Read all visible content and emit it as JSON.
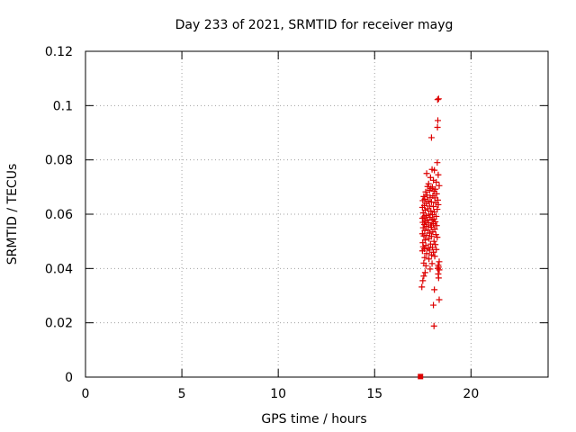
{
  "chart_data": {
    "type": "scatter",
    "title": "Day 233 of 2021, SRMTID for receiver mayg",
    "xlabel": "GPS time / hours",
    "ylabel": "SRMTID / TECUs",
    "xlim": [
      0,
      24
    ],
    "ylim": [
      0,
      0.12
    ],
    "xticks": [
      0,
      5,
      10,
      15,
      20
    ],
    "yticks": [
      0,
      0.02,
      0.04,
      0.06,
      0.08,
      0.1,
      0.12
    ],
    "ytick_labels": [
      "0",
      "0.02",
      "0.04",
      "0.06",
      "0.08",
      "0.1",
      "0.12"
    ],
    "grid": true,
    "marker_color": "#dd0000",
    "series": [
      {
        "marker": "plus",
        "points": [
          [
            18.32,
            0.1025
          ],
          [
            18.27,
            0.1022
          ],
          [
            18.28,
            0.0945
          ],
          [
            18.26,
            0.092
          ],
          [
            17.95,
            0.0882
          ],
          [
            18.25,
            0.079
          ],
          [
            17.98,
            0.0765
          ],
          [
            18.1,
            0.0762
          ],
          [
            17.7,
            0.075
          ],
          [
            18.3,
            0.0745
          ],
          [
            17.9,
            0.0735
          ],
          [
            18.05,
            0.0725
          ],
          [
            18.2,
            0.0718
          ],
          [
            17.8,
            0.0712
          ],
          [
            18.35,
            0.0705
          ],
          [
            17.75,
            0.0702
          ],
          [
            18.0,
            0.07
          ],
          [
            17.92,
            0.0695
          ],
          [
            18.15,
            0.0692
          ],
          [
            17.85,
            0.0688
          ],
          [
            18.08,
            0.0685
          ],
          [
            17.65,
            0.0682
          ],
          [
            18.22,
            0.0675
          ],
          [
            17.72,
            0.067
          ],
          [
            18.02,
            0.0668
          ],
          [
            17.55,
            0.0665
          ],
          [
            17.88,
            0.0662
          ],
          [
            18.12,
            0.066
          ],
          [
            17.6,
            0.0655
          ],
          [
            18.28,
            0.0652
          ],
          [
            17.5,
            0.065
          ],
          [
            17.78,
            0.0648
          ],
          [
            17.95,
            0.0645
          ],
          [
            18.18,
            0.0642
          ],
          [
            17.68,
            0.064
          ],
          [
            18.3,
            0.0635
          ],
          [
            17.58,
            0.0632
          ],
          [
            17.85,
            0.063
          ],
          [
            18.05,
            0.0628
          ],
          [
            17.48,
            0.0625
          ],
          [
            17.75,
            0.062
          ],
          [
            18.25,
            0.0618
          ],
          [
            17.62,
            0.0615
          ],
          [
            17.92,
            0.0612
          ],
          [
            18.1,
            0.0608
          ],
          [
            17.52,
            0.0605
          ],
          [
            17.82,
            0.06
          ],
          [
            18.0,
            0.0598
          ],
          [
            17.66,
            0.0595
          ],
          [
            18.2,
            0.0592
          ],
          [
            17.56,
            0.059
          ],
          [
            17.88,
            0.0588
          ],
          [
            17.48,
            0.0585
          ],
          [
            18.08,
            0.0582
          ],
          [
            17.72,
            0.058
          ],
          [
            17.98,
            0.0578
          ],
          [
            17.62,
            0.0575
          ],
          [
            18.15,
            0.0572
          ],
          [
            17.5,
            0.057
          ],
          [
            17.8,
            0.0568
          ],
          [
            18.05,
            0.0565
          ],
          [
            17.58,
            0.0562
          ],
          [
            17.9,
            0.056
          ],
          [
            18.22,
            0.0558
          ],
          [
            17.68,
            0.0555
          ],
          [
            17.95,
            0.0552
          ],
          [
            17.52,
            0.055
          ],
          [
            18.12,
            0.0545
          ],
          [
            17.78,
            0.0542
          ],
          [
            17.6,
            0.054
          ],
          [
            18.02,
            0.0535
          ],
          [
            17.86,
            0.053
          ],
          [
            17.48,
            0.0528
          ],
          [
            18.18,
            0.0525
          ],
          [
            17.7,
            0.0522
          ],
          [
            17.55,
            0.052
          ],
          [
            17.95,
            0.0518
          ],
          [
            18.25,
            0.0515
          ],
          [
            17.82,
            0.051
          ],
          [
            17.62,
            0.0505
          ],
          [
            18.08,
            0.05
          ],
          [
            17.5,
            0.0495
          ],
          [
            17.9,
            0.049
          ],
          [
            18.15,
            0.0488
          ],
          [
            17.66,
            0.0485
          ],
          [
            17.52,
            0.048
          ],
          [
            18.0,
            0.0478
          ],
          [
            17.78,
            0.0475
          ],
          [
            17.58,
            0.0472
          ],
          [
            18.2,
            0.047
          ],
          [
            17.85,
            0.0468
          ],
          [
            17.48,
            0.0465
          ],
          [
            18.05,
            0.046
          ],
          [
            17.7,
            0.0455
          ],
          [
            17.95,
            0.045
          ],
          [
            18.12,
            0.0445
          ],
          [
            17.6,
            0.044
          ],
          [
            17.82,
            0.0435
          ],
          [
            18.35,
            0.0425
          ],
          [
            17.55,
            0.042
          ],
          [
            17.98,
            0.0418
          ],
          [
            18.3,
            0.0412
          ],
          [
            17.66,
            0.041
          ],
          [
            18.32,
            0.0405
          ],
          [
            18.28,
            0.04
          ],
          [
            17.88,
            0.0398
          ],
          [
            18.35,
            0.0395
          ],
          [
            17.62,
            0.0385
          ],
          [
            18.3,
            0.038
          ],
          [
            17.55,
            0.0372
          ],
          [
            18.32,
            0.0365
          ],
          [
            17.5,
            0.0355
          ],
          [
            17.45,
            0.0332
          ],
          [
            18.1,
            0.0322
          ],
          [
            18.35,
            0.0285
          ],
          [
            18.05,
            0.0265
          ],
          [
            18.08,
            0.0188
          ]
        ]
      },
      {
        "marker": "square",
        "points": [
          [
            17.38,
            0.0002
          ]
        ]
      }
    ]
  }
}
